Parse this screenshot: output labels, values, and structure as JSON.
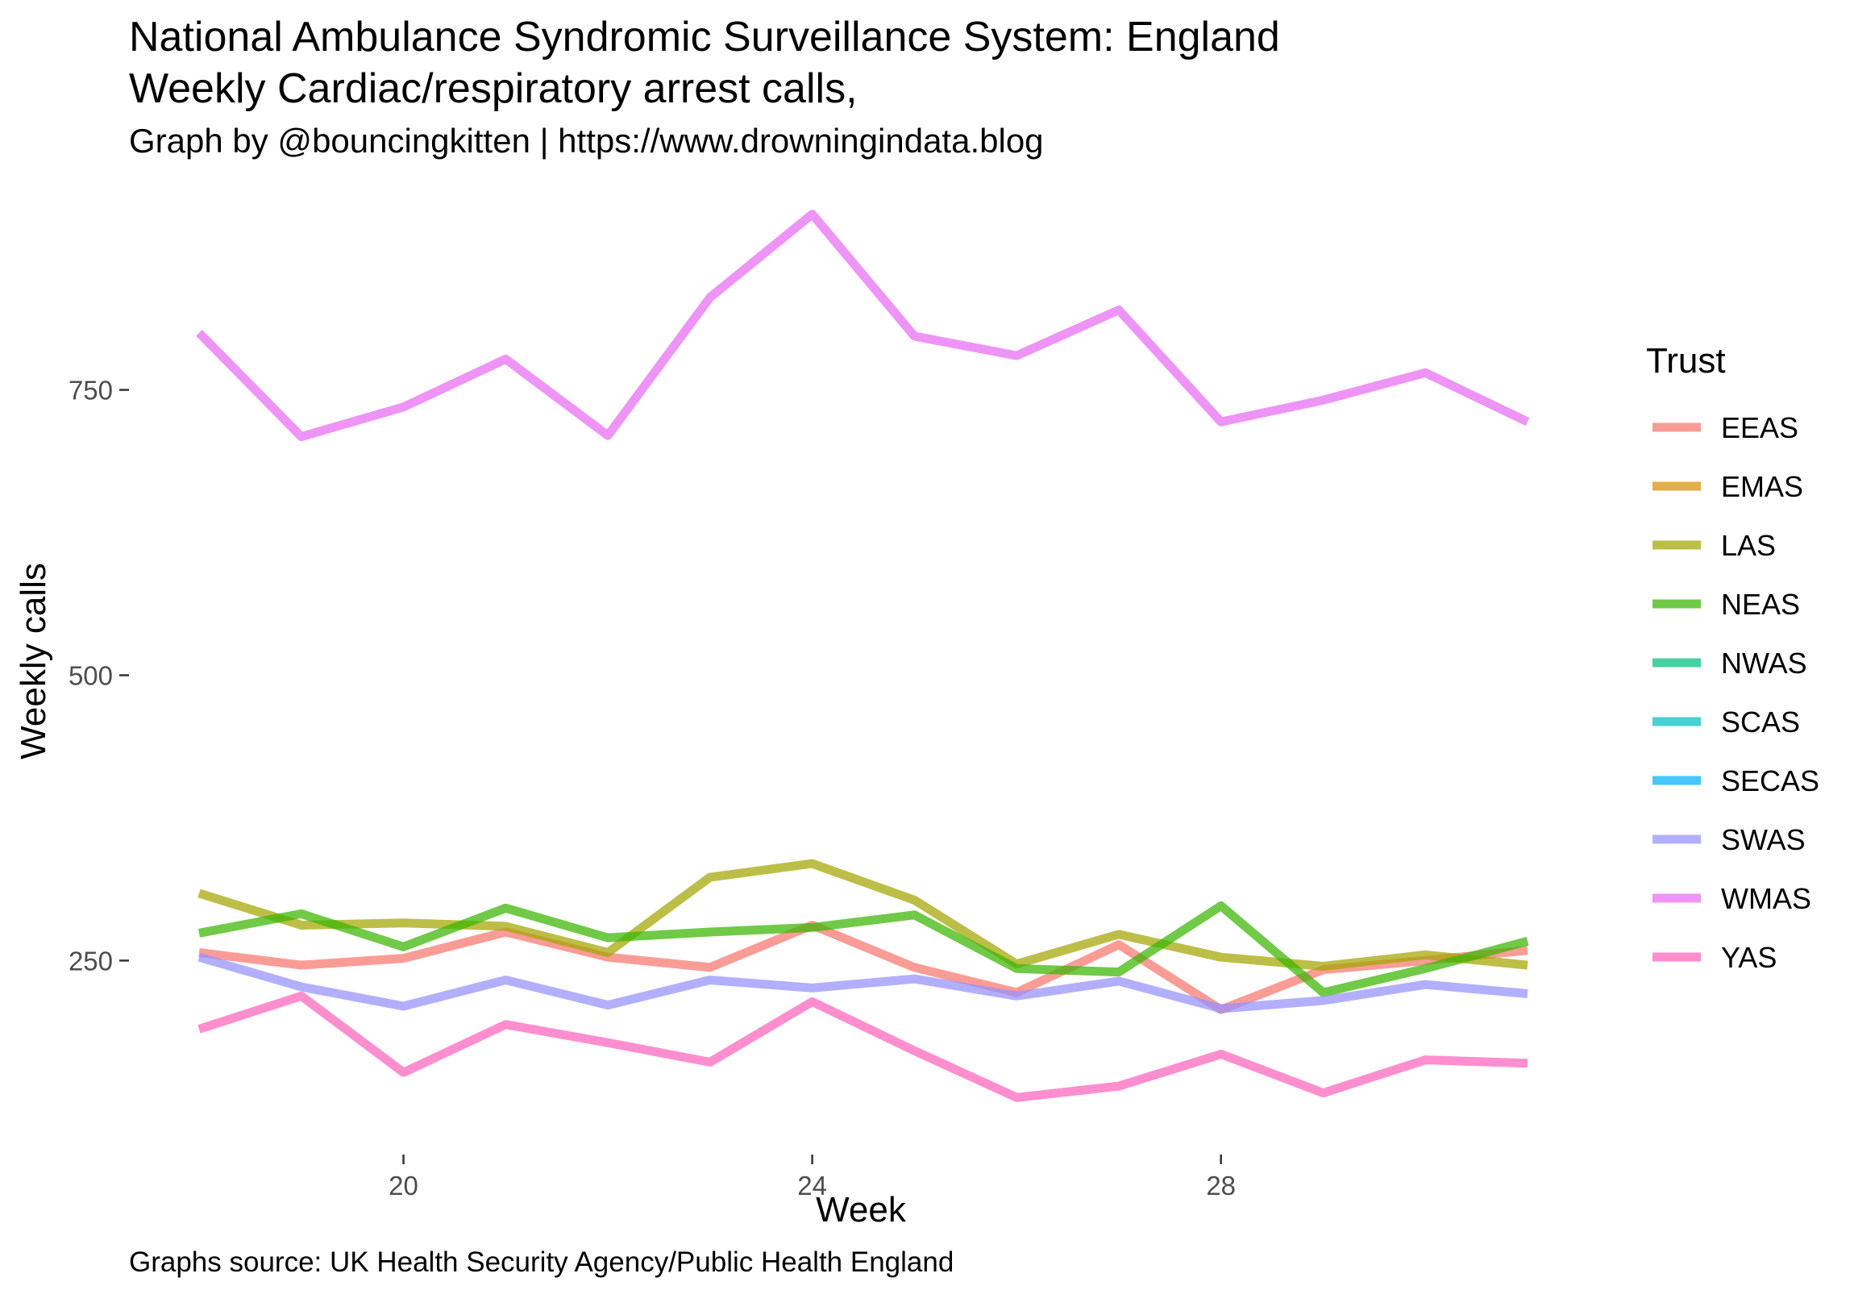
{
  "title_line1": "National Ambulance Syndromic Surveillance System: England",
  "title_line2": "Weekly Cardiac/respiratory arrest calls,",
  "subtitle": "Graph by @bouncingkitten | https://www.drowningindata.blog",
  "caption": "Graphs source: UK Health Security Agency/Public Health England",
  "chart_data": {
    "type": "line",
    "xlabel": "Week",
    "ylabel": "Weekly calls",
    "xlim": [
      18,
      31
    ],
    "ylim": [
      85,
      915
    ],
    "x_ticks": [
      20,
      24,
      28
    ],
    "y_ticks": [
      250,
      500,
      750
    ],
    "grid": false,
    "legend_title": "Trust",
    "legend_position": "right",
    "x": [
      18,
      19,
      20,
      21,
      22,
      23,
      24,
      25,
      26,
      27,
      28,
      29,
      30,
      31
    ],
    "series": [
      {
        "name": "EEAS",
        "color": "#F8766D",
        "values": [
          257,
          246,
          252,
          275,
          253,
          244,
          281,
          244,
          222,
          264,
          207,
          242,
          250,
          259
        ]
      },
      {
        "name": "EMAS",
        "color": "#D89000",
        "values": [
          null,
          null,
          null,
          null,
          null,
          null,
          null,
          null,
          null,
          null,
          null,
          null,
          null,
          null
        ]
      },
      {
        "name": "LAS",
        "color": "#A3A500",
        "values": [
          309,
          281,
          283,
          280,
          257,
          323,
          335,
          303,
          247,
          273,
          253,
          245,
          255,
          246
        ]
      },
      {
        "name": "NEAS",
        "color": "#39B600",
        "values": [
          274,
          291,
          262,
          296,
          270,
          275,
          279,
          290,
          243,
          240,
          298,
          222,
          243,
          267
        ]
      },
      {
        "name": "NWAS",
        "color": "#00BF7D",
        "values": [
          null,
          null,
          null,
          null,
          null,
          null,
          null,
          null,
          null,
          null,
          null,
          null,
          null,
          null
        ]
      },
      {
        "name": "SCAS",
        "color": "#00BFC4",
        "values": [
          null,
          null,
          null,
          null,
          null,
          null,
          null,
          null,
          null,
          null,
          null,
          null,
          null,
          null
        ]
      },
      {
        "name": "SECAS",
        "color": "#00B0F6",
        "values": [
          null,
          null,
          null,
          null,
          null,
          null,
          null,
          null,
          null,
          null,
          null,
          null,
          null,
          null
        ]
      },
      {
        "name": "SWAS",
        "color": "#9590FF",
        "values": [
          253,
          227,
          210,
          233,
          211,
          233,
          226,
          234,
          219,
          232,
          208,
          215,
          229,
          221
        ]
      },
      {
        "name": "WMAS",
        "color": "#E76BF3",
        "values": [
          800,
          709,
          735,
          777,
          710,
          831,
          904,
          797,
          780,
          820,
          722,
          741,
          765,
          722
        ]
      },
      {
        "name": "YAS",
        "color": "#FF62BC",
        "values": [
          190,
          219,
          152,
          194,
          178,
          161,
          214,
          171,
          130,
          140,
          168,
          134,
          163,
          160
        ]
      }
    ]
  }
}
